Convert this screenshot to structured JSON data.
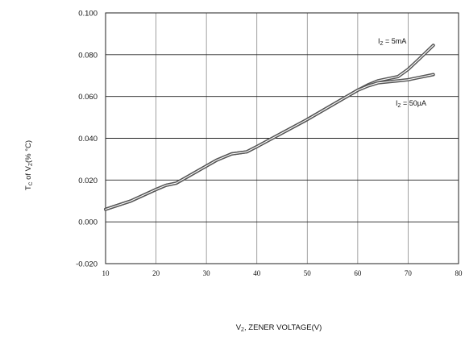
{
  "chart_data": {
    "type": "line",
    "title": "",
    "xlabel": "V",
    "xlabel_sub": "Z",
    "xlabel_rest": ", ZENER  VOLTAGE(V)",
    "ylabel": "T",
    "ylabel_sub1": "C",
    "ylabel_mid": " of V",
    "ylabel_sub2": "Z",
    "ylabel_rest": "(% °C)",
    "xlim": [
      10,
      80
    ],
    "ylim": [
      -0.02,
      0.1
    ],
    "x_ticks": [
      "10",
      "20",
      "30",
      "40",
      "50",
      "60",
      "70",
      "80"
    ],
    "y_ticks": [
      "-0.020",
      "0.000",
      "0.020",
      "0.040",
      "0.060",
      "0.080",
      "0.100"
    ],
    "grid": true,
    "series": [
      {
        "name": "I",
        "name_sub": "Z",
        "name_rest": " = 5mA",
        "color": "#555555",
        "points": [
          [
            10,
            0.006
          ],
          [
            15,
            0.01
          ],
          [
            20,
            0.0155
          ],
          [
            22,
            0.0175
          ],
          [
            24,
            0.0185
          ],
          [
            28,
            0.024
          ],
          [
            32,
            0.0295
          ],
          [
            35,
            0.0325
          ],
          [
            38,
            0.0335
          ],
          [
            40,
            0.036
          ],
          [
            45,
            0.0425
          ],
          [
            50,
            0.049
          ],
          [
            55,
            0.056
          ],
          [
            60,
            0.063
          ],
          [
            62,
            0.0655
          ],
          [
            64,
            0.0675
          ],
          [
            66,
            0.0685
          ],
          [
            68,
            0.0695
          ],
          [
            70,
            0.073
          ],
          [
            72,
            0.0775
          ],
          [
            75,
            0.0845
          ]
        ]
      },
      {
        "name": "I",
        "name_sub": "Z",
        "name_rest": " =  50µA",
        "color": "#555555",
        "points": [
          [
            10,
            0.006
          ],
          [
            15,
            0.01
          ],
          [
            20,
            0.0155
          ],
          [
            22,
            0.0175
          ],
          [
            24,
            0.0185
          ],
          [
            28,
            0.024
          ],
          [
            32,
            0.0295
          ],
          [
            35,
            0.0325
          ],
          [
            38,
            0.0335
          ],
          [
            40,
            0.036
          ],
          [
            45,
            0.0425
          ],
          [
            50,
            0.049
          ],
          [
            55,
            0.056
          ],
          [
            60,
            0.063
          ],
          [
            62,
            0.065
          ],
          [
            64,
            0.0665
          ],
          [
            66,
            0.067
          ],
          [
            68,
            0.0675
          ],
          [
            70,
            0.068
          ],
          [
            72,
            0.069
          ],
          [
            75,
            0.0705
          ]
        ]
      }
    ]
  }
}
